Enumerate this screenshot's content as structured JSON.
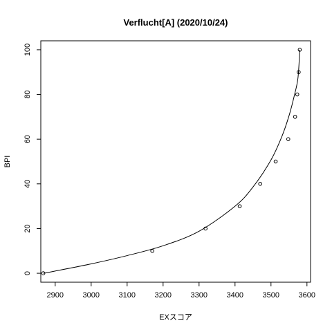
{
  "chart_data": {
    "type": "scatter",
    "title": "Verflucht[A] (2020/10/24)",
    "xlabel": "EXスコア",
    "ylabel": "BPI",
    "xlim": [
      2860,
      3610
    ],
    "ylim": [
      -4,
      104
    ],
    "x_ticks": [
      2900,
      3000,
      3100,
      3200,
      3300,
      3400,
      3500,
      3600
    ],
    "y_ticks": [
      0,
      20,
      40,
      60,
      80,
      100
    ],
    "points": [
      {
        "x": 2867,
        "y": 0
      },
      {
        "x": 3170,
        "y": 10
      },
      {
        "x": 3318,
        "y": 20
      },
      {
        "x": 3413,
        "y": 30
      },
      {
        "x": 3470,
        "y": 40
      },
      {
        "x": 3513,
        "y": 50
      },
      {
        "x": 3548,
        "y": 60
      },
      {
        "x": 3567,
        "y": 70
      },
      {
        "x": 3573,
        "y": 80
      },
      {
        "x": 3577,
        "y": 90
      },
      {
        "x": 3580,
        "y": 100
      }
    ],
    "curve": [
      {
        "x": 2867,
        "y": 0
      },
      {
        "x": 2900,
        "y": 1
      },
      {
        "x": 3000,
        "y": 4.2
      },
      {
        "x": 3100,
        "y": 7.9
      },
      {
        "x": 3200,
        "y": 12.3
      },
      {
        "x": 3300,
        "y": 18.8
      },
      {
        "x": 3400,
        "y": 30
      },
      {
        "x": 3450,
        "y": 38.6
      },
      {
        "x": 3500,
        "y": 50.7
      },
      {
        "x": 3530,
        "y": 61.1
      },
      {
        "x": 3550,
        "y": 70.4
      },
      {
        "x": 3565,
        "y": 79.6
      },
      {
        "x": 3575,
        "y": 87.4
      },
      {
        "x": 3580,
        "y": 100
      }
    ],
    "grid": false,
    "legend": "none"
  }
}
